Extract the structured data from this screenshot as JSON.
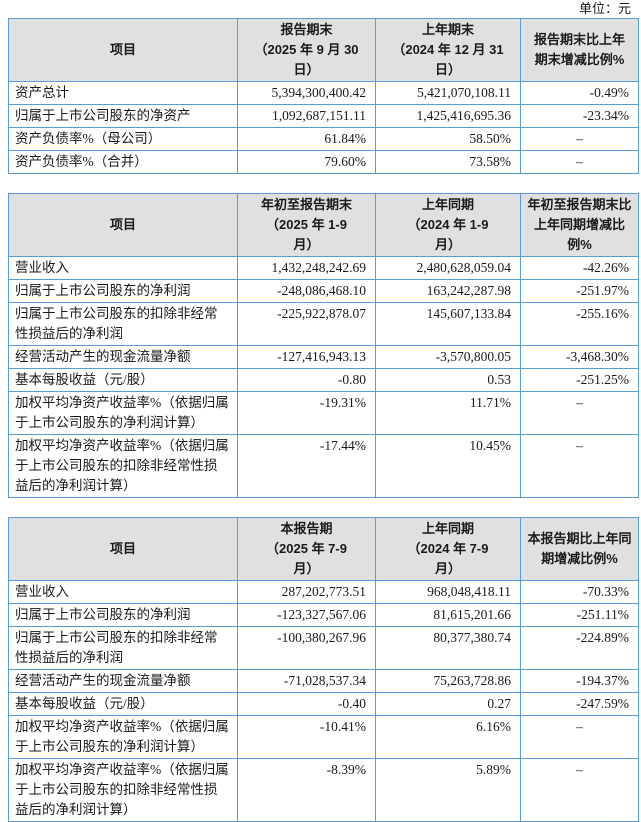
{
  "page": {
    "unit_label": "单位：元"
  },
  "colors": {
    "border": "#5b9bd5",
    "header_bg": "#e0e0e0",
    "text": "#1a1a1a"
  },
  "tables": [
    {
      "name": "period-end-position",
      "headers": [
        "项目",
        "报告期末\n（2025 年 9 月 30\n日）",
        "上年期末\n（2024 年 12 月 31\n日）",
        "报告期末比上年\n期末增减比例%"
      ],
      "rows": [
        [
          "资产总计",
          "5,394,300,400.42",
          "5,421,070,108.11",
          "-0.49%"
        ],
        [
          "归属于上市公司股东的净资产",
          "1,092,687,151.11",
          "1,425,416,695.36",
          "-23.34%"
        ],
        [
          "资产负债率%（母公司）",
          "61.84%",
          "58.50%",
          "–"
        ],
        [
          "资产负债率%（合并）",
          "79.60%",
          "73.58%",
          "–"
        ]
      ]
    },
    {
      "name": "year-to-date-results",
      "headers": [
        "项目",
        "年初至报告期末\n（2025 年 1-9\n月）",
        "上年同期\n（2024 年 1-9\n月）",
        "年初至报告期末比\n上年同期增减比例%"
      ],
      "rows": [
        [
          "营业收入",
          "1,432,248,242.69",
          "2,480,628,059.04",
          "-42.26%"
        ],
        [
          "归属于上市公司股东的净利润",
          "-248,086,468.10",
          "163,242,287.98",
          "-251.97%"
        ],
        [
          "归属于上市公司股东的扣除非经常\n性损益后的净利润",
          "-225,922,878.07",
          "145,607,133.84",
          "-255.16%"
        ],
        [
          "经营活动产生的现金流量净额",
          "-127,416,943.13",
          "-3,570,800.05",
          "-3,468.30%"
        ],
        [
          "基本每股收益（元/股）",
          "-0.80",
          "0.53",
          "-251.25%"
        ],
        [
          "加权平均净资产收益率%（依据归属\n于上市公司股东的净利润计算）",
          "-19.31%",
          "11.71%",
          "–"
        ],
        [
          "加权平均净资产收益率%（依据归属\n于上市公司股东的扣除非经常性损\n益后的净利润计算）",
          "-17.44%",
          "10.45%",
          "–"
        ]
      ]
    },
    {
      "name": "current-quarter-results",
      "headers": [
        "项目",
        "本报告期\n（2025 年 7-9\n月）",
        "上年同期\n（2024 年 7-9\n月）",
        "本报告期比上年同\n期增减比例%"
      ],
      "rows": [
        [
          "营业收入",
          "287,202,773.51",
          "968,048,418.11",
          "-70.33%"
        ],
        [
          "归属于上市公司股东的净利润",
          "-123,327,567.06",
          "81,615,201.66",
          "-251.11%"
        ],
        [
          "归属于上市公司股东的扣除非经常\n性损益后的净利润",
          "-100,380,267.96",
          "80,377,380.74",
          "-224.89%"
        ],
        [
          "经营活动产生的现金流量净额",
          "-71,028,537.34",
          "75,263,728.86",
          "-194.37%"
        ],
        [
          "基本每股收益（元/股）",
          "-0.40",
          "0.27",
          "-247.59%"
        ],
        [
          "加权平均净资产收益率%（依据归属\n于上市公司股东的净利润计算）",
          "-10.41%",
          "6.16%",
          "–"
        ],
        [
          "加权平均净资产收益率%（依据归属\n于上市公司股东的扣除非经常性损\n益后的净利润计算）",
          "-8.39%",
          "5.89%",
          "–"
        ]
      ]
    }
  ]
}
